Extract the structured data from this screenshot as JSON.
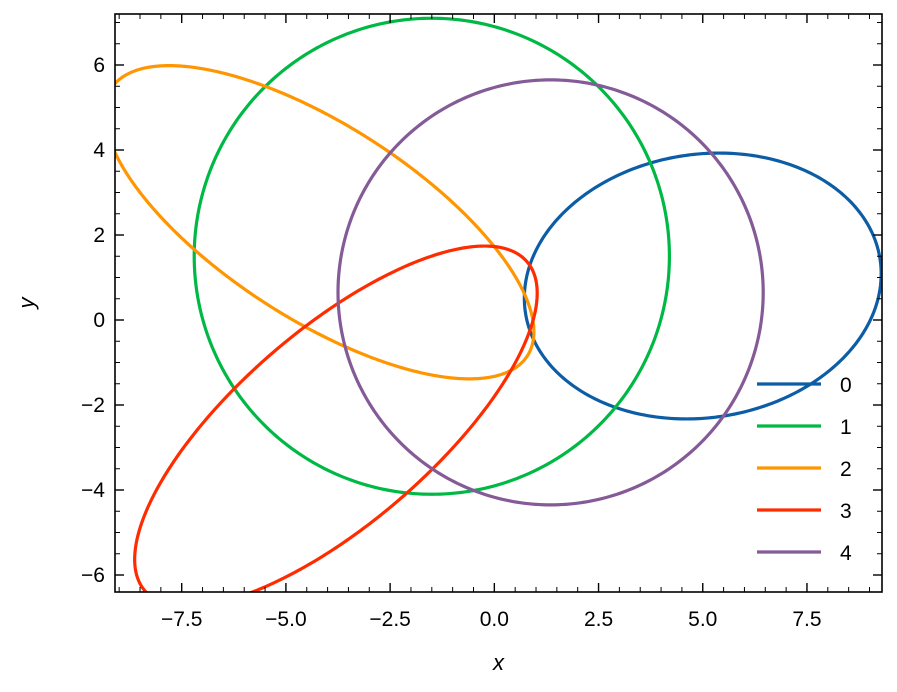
{
  "chart_data": {
    "type": "line",
    "title": "",
    "xlabel": "x",
    "ylabel": "y",
    "xlim": [
      -9.1,
      9.3
    ],
    "ylim": [
      -6.4,
      7.2
    ],
    "x_ticks": [
      -7.5,
      -5.0,
      -2.5,
      0.0,
      2.5,
      5.0,
      7.5
    ],
    "x_tick_labels": [
      "−7.5",
      "−5.0",
      "−2.5",
      "0.0",
      "2.5",
      "5.0",
      "7.5"
    ],
    "y_ticks": [
      -6,
      -4,
      -2,
      0,
      2,
      4,
      6
    ],
    "y_tick_labels": [
      "−6",
      "−4",
      "−2",
      "0",
      "2",
      "4",
      "6"
    ],
    "x_minor_step": 0.5,
    "y_minor_step": 0.5,
    "grid": false,
    "legend_position": "bottom-right",
    "series": [
      {
        "name": "0",
        "color": "#0C5DA5",
        "shape": "ellipse",
        "center": [
          5.0,
          0.8
        ],
        "semi_axis_a": 4.3,
        "semi_axis_b": 3.1,
        "angle_deg": 8
      },
      {
        "name": "1",
        "color": "#00B945",
        "shape": "ellipse",
        "center": [
          -1.5,
          1.5
        ],
        "semi_axis_a": 5.7,
        "semi_axis_b": 5.6,
        "angle_deg": 0
      },
      {
        "name": "2",
        "color": "#FF9500",
        "shape": "ellipse",
        "center": [
          -4.2,
          2.3
        ],
        "semi_axis_a": 5.9,
        "semi_axis_b": 2.3,
        "angle_deg": -32
      },
      {
        "name": "3",
        "color": "#FF2C00",
        "shape": "ellipse",
        "center": [
          -3.8,
          -2.5
        ],
        "semi_axis_a": 6.0,
        "semi_axis_b": 2.3,
        "angle_deg": 40
      },
      {
        "name": "4",
        "color": "#845B97",
        "shape": "ellipse",
        "center": [
          1.35,
          0.65
        ],
        "semi_axis_a": 5.1,
        "semi_axis_b": 5.0,
        "angle_deg": 0
      }
    ]
  }
}
